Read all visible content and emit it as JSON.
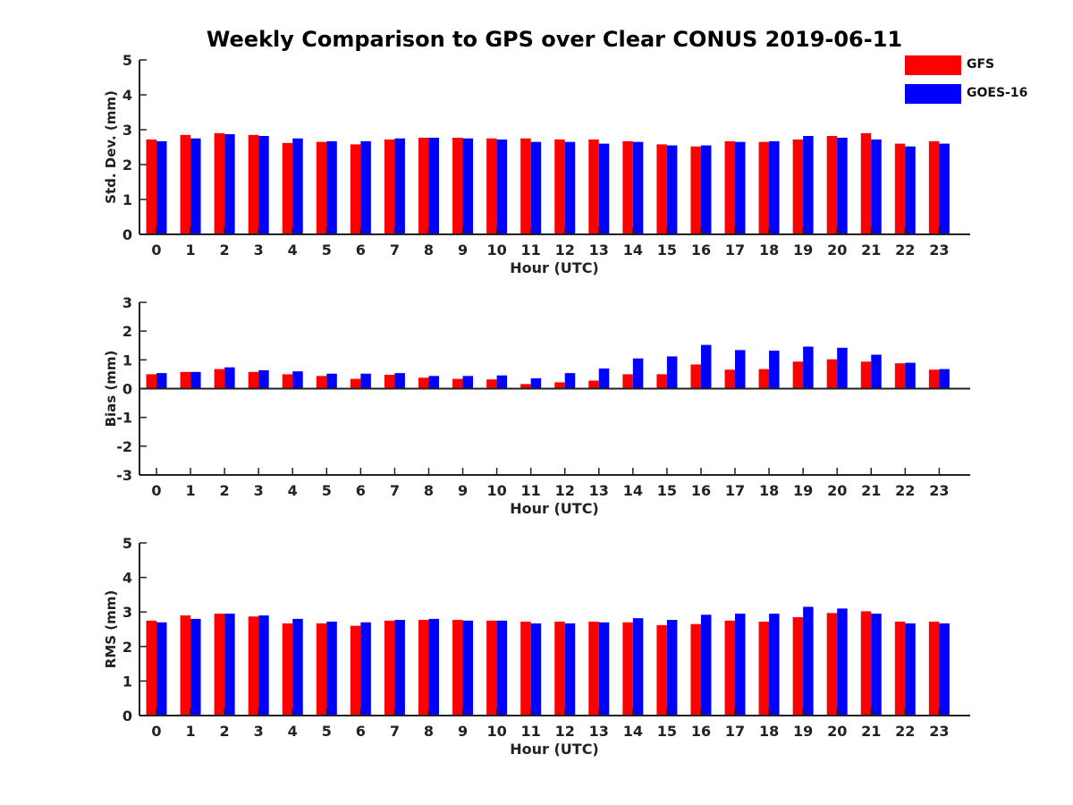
{
  "title": "Weekly Comparison to GPS over Clear CONUS 2019-06-11",
  "legend": [
    {
      "label": "GFS",
      "color": "#ff0000"
    },
    {
      "label": "GOES-16",
      "color": "#0000ff"
    }
  ],
  "chart_data": [
    {
      "type": "bar",
      "ylabel": "Std. Dev. (mm)",
      "xlabel": "Hour (UTC)",
      "ylim": [
        0,
        5
      ],
      "yticks": [
        "0",
        "1",
        "2",
        "3",
        "4",
        "5"
      ],
      "categories": [
        "0",
        "1",
        "2",
        "3",
        "4",
        "5",
        "6",
        "7",
        "8",
        "9",
        "10",
        "11",
        "12",
        "13",
        "14",
        "15",
        "16",
        "17",
        "18",
        "19",
        "20",
        "21",
        "22",
        "23"
      ],
      "series": [
        {
          "name": "GFS",
          "color": "#ff0000",
          "values": [
            2.72,
            2.85,
            2.9,
            2.85,
            2.62,
            2.65,
            2.58,
            2.72,
            2.77,
            2.77,
            2.75,
            2.75,
            2.72,
            2.72,
            2.67,
            2.58,
            2.52,
            2.67,
            2.65,
            2.72,
            2.82,
            2.9,
            2.6,
            2.67
          ]
        },
        {
          "name": "GOES-16",
          "color": "#0000ff",
          "values": [
            2.67,
            2.75,
            2.87,
            2.82,
            2.75,
            2.67,
            2.67,
            2.75,
            2.77,
            2.75,
            2.72,
            2.65,
            2.65,
            2.6,
            2.65,
            2.55,
            2.55,
            2.65,
            2.67,
            2.82,
            2.77,
            2.72,
            2.52,
            2.6
          ]
        }
      ]
    },
    {
      "type": "bar",
      "ylabel": "Bias (mm)",
      "xlabel": "Hour (UTC)",
      "ylim": [
        -3,
        3
      ],
      "yticks": [
        "-3",
        "-2",
        "-1",
        "0",
        "1",
        "2",
        "3"
      ],
      "categories": [
        "0",
        "1",
        "2",
        "3",
        "4",
        "5",
        "6",
        "7",
        "8",
        "9",
        "10",
        "11",
        "12",
        "13",
        "14",
        "15",
        "16",
        "17",
        "18",
        "19",
        "20",
        "21",
        "22",
        "23"
      ],
      "series": [
        {
          "name": "GFS",
          "color": "#ff0000",
          "values": [
            0.5,
            0.58,
            0.68,
            0.58,
            0.5,
            0.44,
            0.34,
            0.48,
            0.38,
            0.34,
            0.32,
            0.16,
            0.22,
            0.28,
            0.5,
            0.5,
            0.84,
            0.66,
            0.68,
            0.94,
            1.02,
            0.94,
            0.88,
            0.66
          ]
        },
        {
          "name": "GOES-16",
          "color": "#0000ff",
          "values": [
            0.54,
            0.58,
            0.74,
            0.64,
            0.6,
            0.52,
            0.52,
            0.54,
            0.44,
            0.44,
            0.46,
            0.36,
            0.54,
            0.7,
            1.05,
            1.12,
            1.52,
            1.34,
            1.32,
            1.46,
            1.42,
            1.18,
            0.9,
            0.68
          ]
        }
      ]
    },
    {
      "type": "bar",
      "ylabel": "RMS (mm)",
      "xlabel": "Hour (UTC)",
      "ylim": [
        0,
        5
      ],
      "yticks": [
        "0",
        "1",
        "2",
        "3",
        "4",
        "5"
      ],
      "categories": [
        "0",
        "1",
        "2",
        "3",
        "4",
        "5",
        "6",
        "7",
        "8",
        "9",
        "10",
        "11",
        "12",
        "13",
        "14",
        "15",
        "16",
        "17",
        "18",
        "19",
        "20",
        "21",
        "22",
        "23"
      ],
      "series": [
        {
          "name": "GFS",
          "color": "#ff0000",
          "values": [
            2.75,
            2.9,
            2.95,
            2.87,
            2.67,
            2.67,
            2.6,
            2.75,
            2.77,
            2.77,
            2.75,
            2.72,
            2.72,
            2.72,
            2.7,
            2.62,
            2.65,
            2.75,
            2.72,
            2.85,
            2.97,
            3.02,
            2.72,
            2.72
          ]
        },
        {
          "name": "GOES-16",
          "color": "#0000ff",
          "values": [
            2.7,
            2.8,
            2.95,
            2.9,
            2.8,
            2.72,
            2.7,
            2.77,
            2.8,
            2.75,
            2.75,
            2.67,
            2.67,
            2.7,
            2.82,
            2.77,
            2.92,
            2.95,
            2.95,
            3.15,
            3.1,
            2.95,
            2.67,
            2.67
          ]
        }
      ]
    }
  ]
}
